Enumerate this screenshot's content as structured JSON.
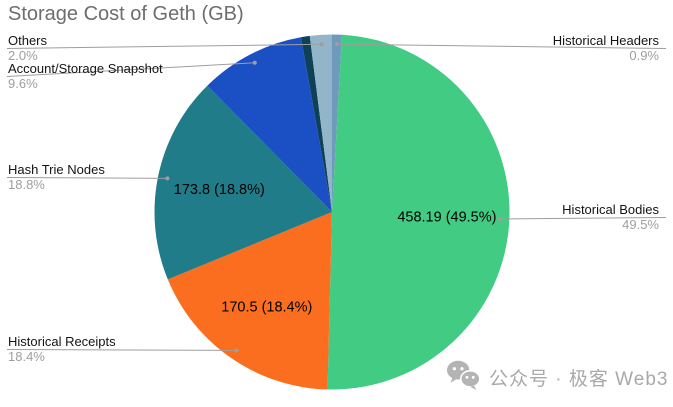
{
  "chart_data": {
    "type": "pie",
    "title": "Storage Cost of Geth (GB)",
    "unit": "GB",
    "start_angle_deg": 0,
    "direction": "clockwise",
    "slices": [
      {
        "label": "Historical Headers",
        "percent": 0.9,
        "color": "#6e9abc",
        "inner_label": ""
      },
      {
        "label": "Historical Bodies",
        "percent": 49.5,
        "value_gb": 458.19,
        "color": "#42cb82",
        "inner_label": "458.19 (49.5%)"
      },
      {
        "label": "Historical Receipts",
        "percent": 18.4,
        "value_gb": 170.5,
        "color": "#fb6e1f",
        "inner_label": "170.5 (18.4%)"
      },
      {
        "label": "Hash Trie Nodes",
        "percent": 18.8,
        "value_gb": 173.8,
        "color": "#207c88",
        "inner_label": "173.8 (18.8%)"
      },
      {
        "label": "Account/Storage Snapshot",
        "percent": 9.6,
        "color": "#1b50c4",
        "inner_label": ""
      },
      {
        "label": "",
        "percent": 0.8,
        "color": "#0e4058",
        "inner_label": ""
      },
      {
        "label": "Others",
        "percent": 2.0,
        "color": "#93b5ca",
        "inner_label": ""
      }
    ]
  },
  "callouts": [
    {
      "name": "Others",
      "percent_label": "2.0%"
    },
    {
      "name": "Account/Storage Snapshot",
      "percent_label": "9.6%"
    },
    {
      "name": "Hash Trie Nodes",
      "percent_label": "18.8%"
    },
    {
      "name": "Historical Receipts",
      "percent_label": "18.4%"
    },
    {
      "name": "Historical Headers",
      "percent_label": "0.9%"
    },
    {
      "name": "Historical Bodies",
      "percent_label": "49.5%"
    }
  ],
  "watermark": {
    "icon": "wechat-icon",
    "text": "公众号 · 极客 Web3"
  }
}
